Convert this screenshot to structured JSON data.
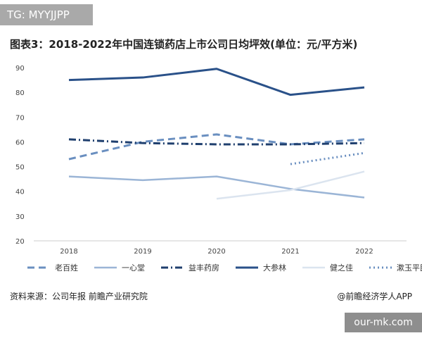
{
  "tag": "TG: MYYJJPP",
  "title": "图表3：2018-2022年中国连锁药店上市公司日均坪效(单位：元/平方米)",
  "source": "资料来源：公司年报 前瞻产业研究院",
  "brand": "@前瞻经济学人APP",
  "watermark": "our-mk.com",
  "chart_data": {
    "type": "line",
    "title": "图表3：2018-2022年中国连锁药店上市公司日均坪效(单位：元/平方米)",
    "x": [
      "2018",
      "2019",
      "2020",
      "2021",
      "2022"
    ],
    "ylim": [
      20,
      90
    ],
    "yticks": [
      "90",
      "80",
      "70",
      "60",
      "50",
      "40",
      "30",
      "20"
    ],
    "grid": false,
    "legend_position": "bottom",
    "series": [
      {
        "name": "老百姓",
        "values": [
          53,
          60,
          63,
          59,
          61
        ],
        "color": "#6a8fc0",
        "dash": "10,6",
        "width": 3
      },
      {
        "name": "一心堂",
        "values": [
          46,
          44.5,
          46,
          41,
          37.5
        ],
        "color": "#9bb5d6",
        "dash": "",
        "width": 2.5
      },
      {
        "name": "益丰药房",
        "values": [
          61,
          59.5,
          59,
          59,
          59.5
        ],
        "color": "#1f3f6e",
        "dash": "10,4,2,4",
        "width": 3
      },
      {
        "name": "大参林",
        "values": [
          85,
          86,
          89.5,
          79,
          82
        ],
        "color": "#2a5189",
        "dash": "",
        "width": 3
      },
      {
        "name": "健之佳",
        "values": [
          null,
          null,
          37,
          40.5,
          48
        ],
        "color": "#dbe4ef",
        "dash": "",
        "width": 2.5
      },
      {
        "name": "漱玉平民",
        "values": [
          null,
          null,
          null,
          51,
          55.5
        ],
        "color": "#6a8fc0",
        "dash": "2,4",
        "width": 3
      }
    ]
  }
}
